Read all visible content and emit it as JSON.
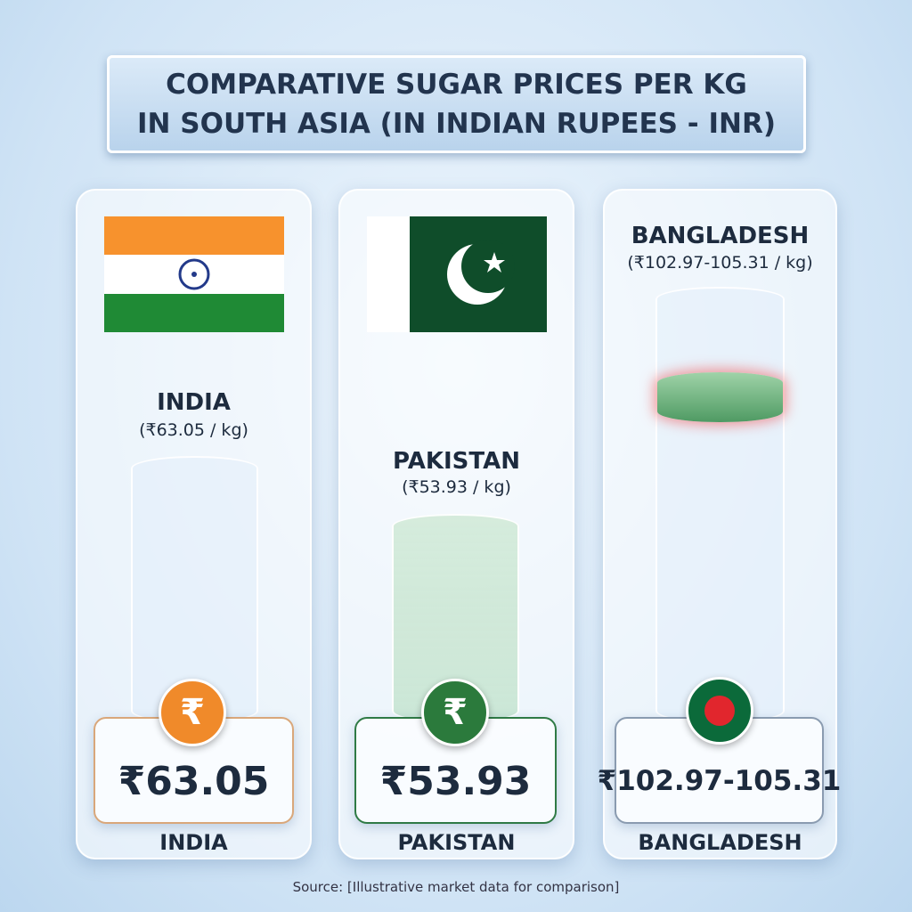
{
  "header": {
    "title_lines": [
      "COMPARATIVE SUGAR PRICES PER KG",
      "IN SOUTH ASIA (IN INDIAN RUPEES - INR)"
    ]
  },
  "panels": [
    {
      "name": "INDIA",
      "price_note": "(₹63.05 / kg)",
      "coin": "₹",
      "price": "₹63.05",
      "footer": "INDIA"
    },
    {
      "name": "PAKISTAN",
      "price_note": "(₹53.93 / kg)",
      "coin": "₹",
      "price": "₹53.93",
      "footer": "PAKISTAN"
    },
    {
      "name": "BANGLADESH",
      "price_note": "(₹102.97-105.31 / kg)",
      "price": "₹102.97-105.31",
      "footer": "BANGLADESH"
    }
  ],
  "source": "Source: [Illustrative market data for comparison]"
}
